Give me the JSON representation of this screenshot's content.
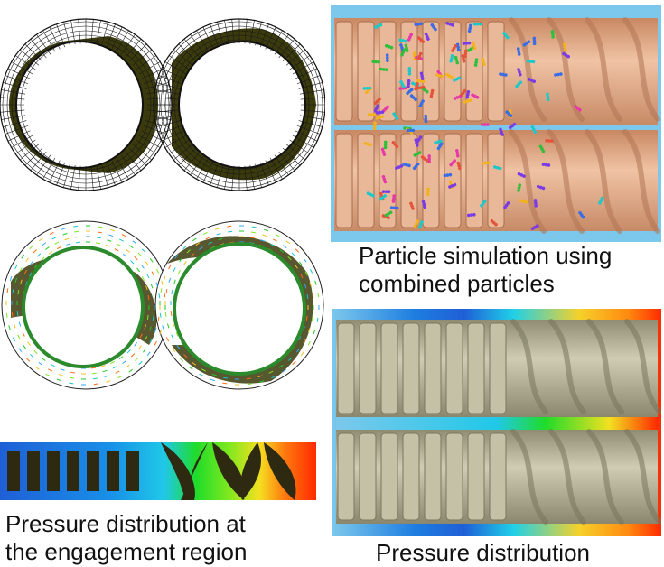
{
  "figure": {
    "captions": {
      "particle": [
        "Particle simulation using",
        "combined particles"
      ],
      "engagement": [
        "Pressure distribution at",
        "the engagement region"
      ],
      "pressure": "Pressure distribution"
    },
    "colors": {
      "mesh_line": "#1a1a1a",
      "mesh_fill": "#3a3a0c",
      "screw_particle": "#e2aa8a",
      "screw_pressure": "#a6a48a",
      "barrel_fluid": "#7cc8ec",
      "pressure_low": "#1f5fd6",
      "pressure_mid": "#1fdc2a",
      "pressure_high": "#ff2a00",
      "velocity_arrow": "#22cc22"
    },
    "icons": {
      "mesh": "twin-screw-mesh-graphic",
      "velocity": "velocity-vector-graphic",
      "engagement": "engagement-pressure-graphic",
      "particle": "particle-screw-render",
      "pressure": "pressure-screw-render"
    }
  }
}
